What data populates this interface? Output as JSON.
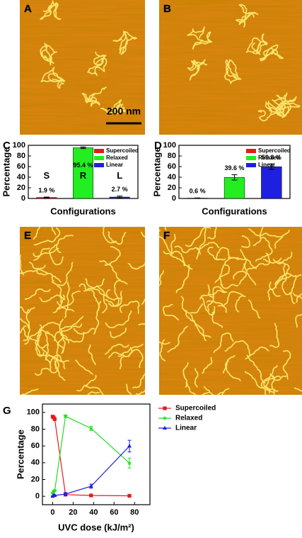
{
  "panel_labels": [
    "A",
    "B",
    "E",
    "F"
  ],
  "scale_bar": "200 nm",
  "chart_data": [
    {
      "type": "bar",
      "panel": "C",
      "xlabel": "Configurations",
      "ylabel": "Percentage",
      "ylim": [
        0,
        100
      ],
      "yticks": [
        0,
        20,
        40,
        60,
        80,
        100
      ],
      "legend": "upper right",
      "annotations": [
        "S",
        "R",
        "L"
      ],
      "series": [
        {
          "name": "Supercoiled",
          "color": "#e41a1c",
          "values": [
            1.9
          ],
          "errors": [
            0.8
          ],
          "value_labels": [
            "1.9 %"
          ]
        },
        {
          "name": "Relaxed",
          "color": "#22ee22",
          "values": [
            95.4
          ],
          "errors": [
            1.5
          ],
          "value_labels": [
            "95.4 %"
          ]
        },
        {
          "name": "Linear",
          "color": "#1f1fe0",
          "values": [
            2.7
          ],
          "errors": [
            1.8
          ],
          "value_labels": [
            "2.7 %"
          ]
        }
      ]
    },
    {
      "type": "bar",
      "panel": "D",
      "xlabel": "Configurations",
      "ylabel": "Percentage",
      "ylim": [
        0,
        100
      ],
      "yticks": [
        0,
        20,
        40,
        60,
        80,
        100
      ],
      "legend": "upper right",
      "series": [
        {
          "name": "Supercoiled",
          "color": "#e41a1c",
          "values": [
            0.6
          ],
          "errors": [
            0.4
          ],
          "value_labels": [
            "0.6 %"
          ]
        },
        {
          "name": "Relaxed",
          "color": "#22ee22",
          "values": [
            39.6
          ],
          "errors": [
            5
          ],
          "value_labels": [
            "39.6 %"
          ]
        },
        {
          "name": "Linear",
          "color": "#1f1fe0",
          "values": [
            59.8
          ],
          "errors": [
            5
          ],
          "value_labels": [
            "59.8 %"
          ]
        }
      ]
    },
    {
      "type": "line",
      "panel": "G",
      "xlabel": "UVC dose (kJ/m²)",
      "ylabel": "Percentage",
      "x": [
        0,
        1,
        2,
        12.5,
        37.5,
        75
      ],
      "xlim": [
        -10,
        95
      ],
      "xticks": [
        0,
        20,
        40,
        60,
        80
      ],
      "ylim": [
        -10,
        110
      ],
      "yticks": [
        0,
        20,
        40,
        60,
        80,
        100
      ],
      "legend": "right",
      "series": [
        {
          "name": "Supercoiled",
          "color": "#e41a1c",
          "marker": "square",
          "values": [
            95,
            94,
            92,
            2,
            1,
            0.6
          ],
          "errors": [
            0.5,
            0.5,
            0.5,
            0.8,
            0.5,
            0.4
          ]
        },
        {
          "name": "Relaxed",
          "color": "#22dd22",
          "marker": "star",
          "values": [
            4,
            6,
            7,
            95.4,
            81,
            39.6
          ],
          "errors": [
            0.5,
            0.5,
            0.5,
            1.5,
            2.5,
            6
          ]
        },
        {
          "name": "Linear",
          "color": "#1f1fe0",
          "marker": "triangle",
          "values": [
            0,
            1,
            1,
            2.7,
            12,
            59.8
          ],
          "errors": [
            0.5,
            0.5,
            0.5,
            1.8,
            2.5,
            7
          ]
        }
      ]
    }
  ]
}
